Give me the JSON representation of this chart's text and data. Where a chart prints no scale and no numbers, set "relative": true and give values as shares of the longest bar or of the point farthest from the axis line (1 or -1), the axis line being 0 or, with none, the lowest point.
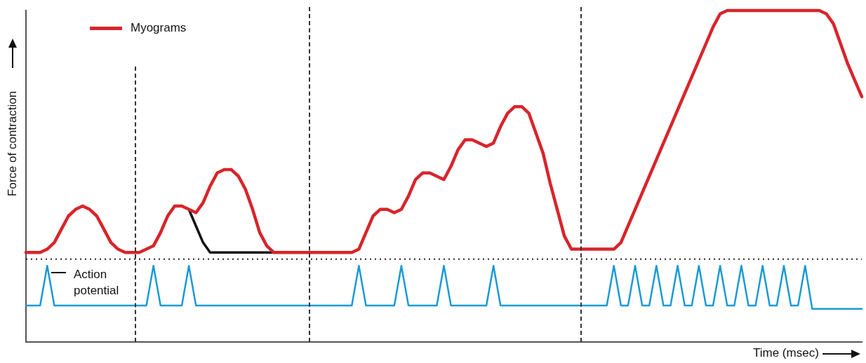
{
  "chart_data": {
    "type": "line",
    "relative": true,
    "xlabel": "Time (msec)",
    "ylabel": "Force of contraction",
    "legend": "top left",
    "grid": false,
    "categories": [
      null,
      null,
      null,
      null,
      null,
      null,
      null,
      null,
      null,
      null,
      null,
      null,
      null,
      null,
      null,
      null,
      null,
      null,
      null,
      null,
      null,
      null,
      null,
      null,
      null,
      null,
      null,
      null,
      null,
      null,
      null,
      null,
      null,
      null,
      null,
      null,
      null,
      null,
      null,
      null,
      null,
      null,
      null,
      null,
      null,
      null,
      null,
      null,
      null,
      null,
      null,
      null,
      null,
      null,
      null,
      null,
      null,
      null,
      null,
      null,
      null,
      null,
      null,
      null,
      null,
      null,
      null,
      null,
      null,
      null,
      null,
      null,
      null,
      null,
      null,
      null,
      null,
      null,
      null,
      null,
      null,
      null,
      null,
      null,
      null,
      null,
      null,
      null,
      null,
      null,
      null,
      null,
      null,
      null,
      null,
      null,
      null,
      null,
      null,
      null,
      null,
      null,
      null,
      null,
      null,
      null,
      null,
      null,
      null,
      null,
      null,
      null,
      null,
      null,
      null,
      null,
      null,
      null,
      null
    ],
    "series": [
      {
        "name": "Myograms",
        "color": "#d7252b",
        "values": [
          0.27,
          0.27,
          0.27,
          0.28,
          0.3,
          0.34,
          0.38,
          0.4,
          0.41,
          0.4,
          0.38,
          0.34,
          0.3,
          0.28,
          0.27,
          0.27,
          0.27,
          0.28,
          0.29,
          0.33,
          0.38,
          0.41,
          0.41,
          0.4,
          0.39,
          0.42,
          0.47,
          0.51,
          0.52,
          0.52,
          0.5,
          0.46,
          0.4,
          0.33,
          0.29,
          0.27,
          0.27,
          0.27,
          0.27,
          0.27,
          0.27,
          0.27,
          0.27,
          0.27,
          0.27,
          0.27,
          0.27,
          0.28,
          0.33,
          0.38,
          0.4,
          0.4,
          0.39,
          0.4,
          0.44,
          0.49,
          0.51,
          0.51,
          0.5,
          0.49,
          0.53,
          0.58,
          0.61,
          0.61,
          0.6,
          0.59,
          0.6,
          0.65,
          0.69,
          0.71,
          0.71,
          0.69,
          0.63,
          0.57,
          0.48,
          0.4,
          0.32,
          0.28,
          0.28,
          0.28,
          0.28,
          0.28,
          0.28,
          0.28,
          0.3,
          0.35,
          0.4,
          0.45,
          0.5,
          0.55,
          0.6,
          0.65,
          0.7,
          0.75,
          0.8,
          0.85,
          0.9,
          0.95,
          0.99,
          1.0,
          1.0,
          1.0,
          1.0,
          1.0,
          1.0,
          1.0,
          1.0,
          1.0,
          1.0,
          1.0,
          1.0,
          1.0,
          1.0,
          0.99,
          0.96,
          0.9,
          0.84,
          0.79,
          0.74
        ]
      },
      {
        "color": "#111111",
        "values": [
          null,
          null,
          null,
          null,
          null,
          null,
          null,
          null,
          null,
          null,
          null,
          null,
          null,
          null,
          null,
          null,
          null,
          null,
          null,
          null,
          null,
          null,
          null,
          0.4,
          0.35,
          0.3,
          0.27,
          0.27,
          0.27,
          0.27,
          0.27,
          0.27,
          0.27,
          0.27,
          0.27,
          0.27,
          null,
          null,
          null,
          null,
          null,
          null,
          null,
          null,
          null,
          null,
          null,
          null,
          null,
          null,
          null,
          null,
          null,
          null,
          null,
          null,
          null,
          null,
          null,
          null,
          null,
          null,
          null,
          null,
          null,
          null,
          null,
          null,
          null,
          null,
          null,
          null,
          null,
          null,
          null,
          null,
          null,
          null,
          null,
          null,
          null,
          null,
          null,
          null,
          null,
          null,
          null,
          null,
          null,
          null,
          null,
          null,
          null,
          null,
          null,
          null,
          null,
          null,
          null,
          null,
          null,
          null,
          null,
          null,
          null,
          null,
          null,
          null,
          null,
          null,
          null,
          null,
          null,
          null,
          null,
          null,
          null,
          null,
          null
        ]
      },
      {
        "color": "#1b9ad6",
        "values": [
          0.11,
          0.11,
          0.11,
          0.23,
          0.11,
          0.11,
          0.11,
          0.11,
          0.11,
          0.11,
          0.11,
          0.11,
          0.11,
          0.11,
          0.11,
          0.11,
          0.11,
          0.11,
          0.23,
          0.11,
          0.11,
          0.11,
          0.11,
          0.23,
          0.11,
          0.11,
          0.11,
          0.11,
          0.11,
          0.11,
          0.11,
          0.11,
          0.11,
          0.11,
          0.11,
          0.11,
          0.11,
          0.11,
          0.11,
          0.11,
          0.11,
          0.11,
          0.11,
          0.11,
          0.11,
          0.11,
          0.11,
          0.23,
          0.11,
          0.11,
          0.11,
          0.11,
          0.11,
          0.23,
          0.11,
          0.11,
          0.11,
          0.11,
          0.11,
          0.23,
          0.11,
          0.11,
          0.11,
          0.11,
          0.11,
          0.11,
          0.23,
          0.11,
          0.11,
          0.11,
          0.11,
          0.11,
          0.11,
          0.11,
          0.11,
          0.11,
          0.11,
          0.11,
          0.11,
          0.11,
          0.11,
          0.11,
          0.11,
          0.23,
          0.11,
          0.11,
          0.23,
          0.11,
          0.11,
          0.23,
          0.11,
          0.11,
          0.23,
          0.11,
          0.11,
          0.23,
          0.11,
          0.11,
          0.23,
          0.11,
          0.11,
          0.23,
          0.11,
          0.11,
          0.23,
          0.11,
          0.11,
          0.23,
          0.11,
          0.11,
          0.23,
          0.1,
          0.1,
          0.1,
          0.1,
          0.1,
          0.1,
          0.1,
          0.1
        ]
      }
    ],
    "ref_lines": [
      {
        "axis": "y",
        "value": 0.25,
        "line_style": "dotted",
        "color": "#222222"
      }
    ],
    "annotations": [
      "Action potential"
    ]
  }
}
